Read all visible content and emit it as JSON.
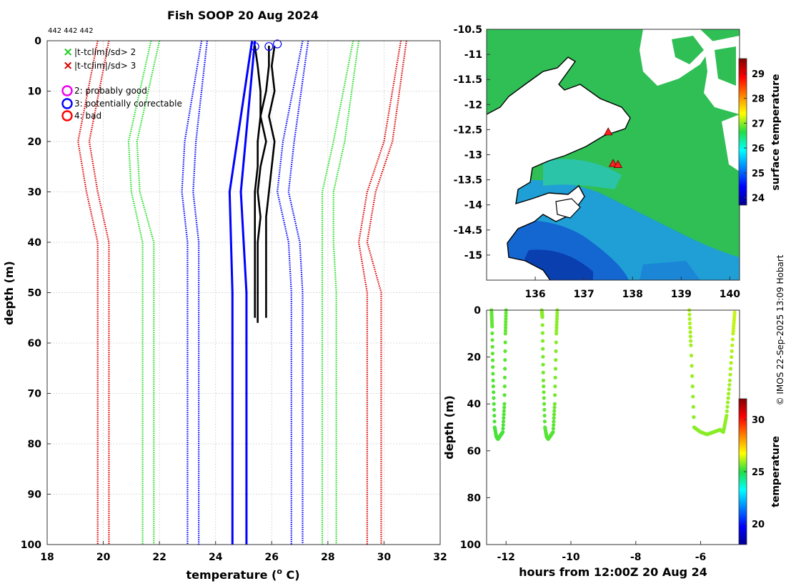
{
  "title": "Fish SOOP 20 Aug 2024",
  "counts_label": "442 442 442",
  "credit": "© IMOS 22-Sep-2025 13:09 Hobart",
  "colors": {
    "blue": "#0000ff",
    "green": "#22dd22",
    "red": "#dd0000",
    "black": "#000000",
    "magenta": "#ee00ee"
  },
  "chart_data": [
    {
      "id": "profile",
      "type": "line",
      "xlabel": "temperature (° C)",
      "ylabel": "depth (m)",
      "xlim": [
        18,
        32
      ],
      "ylim": [
        0,
        100
      ],
      "y_reversed": true,
      "xticks": [
        18,
        20,
        22,
        24,
        26,
        28,
        30,
        32
      ],
      "yticks": [
        0,
        10,
        20,
        30,
        40,
        50,
        60,
        70,
        80,
        90,
        100
      ],
      "grid": true,
      "legend": [
        {
          "symbol": "x",
          "color": "#22cc22",
          "text": "|t-tclim|/sd> 2"
        },
        {
          "symbol": "x",
          "color": "#dd0000",
          "text": "|t-tclim|/sd> 3"
        },
        {
          "symbol": "o",
          "color": "#ee00ee",
          "text": "2: probably good"
        },
        {
          "symbol": "o",
          "color": "#0000ff",
          "text": "3: potentially correctable"
        },
        {
          "symbol": "o",
          "color": "#ff0000",
          "text": "4: bad"
        }
      ],
      "climatology_depths": [
        0,
        20,
        30,
        40,
        50,
        100
      ],
      "climatology_series": [
        {
          "name": "clim -3sd lower",
          "color": "red",
          "values": [
            19.8,
            19.1,
            19.4,
            19.8,
            19.8,
            19.8
          ]
        },
        {
          "name": "clim -3sd upper",
          "color": "red",
          "values": [
            20.2,
            19.5,
            19.8,
            20.2,
            20.2,
            20.2
          ]
        },
        {
          "name": "clim -2sd lower",
          "color": "green",
          "values": [
            21.7,
            20.9,
            21.0,
            21.4,
            21.4,
            21.4
          ]
        },
        {
          "name": "clim -2sd upper",
          "color": "green",
          "values": [
            22.0,
            21.2,
            21.3,
            21.8,
            21.8,
            21.8
          ]
        },
        {
          "name": "clim -1sd lower",
          "color": "blue",
          "values": [
            23.5,
            22.9,
            22.8,
            23.0,
            23.0,
            23.0
          ]
        },
        {
          "name": "clim -1sd upper",
          "color": "blue",
          "values": [
            23.7,
            23.3,
            23.2,
            23.4,
            23.4,
            23.4
          ]
        },
        {
          "name": "clim +1sd lower",
          "color": "blue",
          "values": [
            27.1,
            26.4,
            26.2,
            26.6,
            26.7,
            26.7
          ]
        },
        {
          "name": "clim +1sd upper",
          "color": "blue",
          "values": [
            27.3,
            26.8,
            26.6,
            27.0,
            27.1,
            27.1
          ]
        },
        {
          "name": "clim +2sd lower",
          "color": "green",
          "values": [
            28.9,
            28.2,
            27.8,
            27.8,
            27.8,
            27.8
          ]
        },
        {
          "name": "clim +2sd upper",
          "color": "green",
          "values": [
            29.1,
            28.6,
            28.2,
            28.2,
            28.3,
            28.3
          ]
        },
        {
          "name": "clim +3sd lower",
          "color": "red",
          "values": [
            30.6,
            30.0,
            29.4,
            29.1,
            29.4,
            29.4
          ]
        },
        {
          "name": "clim +3sd upper",
          "color": "red",
          "values": [
            30.8,
            30.3,
            29.7,
            29.4,
            29.9,
            29.9
          ]
        }
      ],
      "mean_profiles": [
        {
          "name": "clim mean lower",
          "color": "blue",
          "depths": [
            0,
            30,
            50,
            100
          ],
          "values": [
            25.3,
            24.5,
            24.6,
            24.6
          ]
        },
        {
          "name": "clim mean upper",
          "color": "blue",
          "depths": [
            0,
            30,
            50,
            100
          ],
          "values": [
            25.4,
            24.9,
            25.1,
            25.1
          ]
        }
      ],
      "profiles": [
        {
          "name": "profile 1",
          "depths": [
            1,
            5,
            10,
            15,
            20,
            25,
            30,
            35,
            40,
            45,
            50,
            55
          ],
          "values": [
            25.4,
            25.5,
            25.6,
            25.6,
            25.5,
            25.5,
            25.4,
            25.4,
            25.4,
            25.4,
            25.4,
            25.4
          ]
        },
        {
          "name": "profile 2",
          "depths": [
            1,
            5,
            10,
            15,
            20,
            25,
            30,
            35,
            40,
            45,
            50,
            56
          ],
          "values": [
            25.9,
            25.9,
            25.8,
            25.6,
            25.8,
            25.6,
            25.5,
            25.6,
            25.5,
            25.5,
            25.5,
            25.5
          ]
        },
        {
          "name": "profile 3",
          "depths": [
            1,
            5,
            10,
            15,
            20,
            25,
            30,
            35,
            40,
            45,
            50,
            55
          ],
          "values": [
            26.1,
            26.0,
            26.1,
            25.9,
            26.1,
            26.0,
            25.9,
            25.8,
            25.8,
            25.8,
            25.8,
            25.8
          ]
        }
      ],
      "surface_markers": [
        {
          "x": 25.4,
          "depth": 1,
          "color": "#0000ff"
        },
        {
          "x": 25.9,
          "depth": 1,
          "color": "#0000ff"
        },
        {
          "x": 26.2,
          "depth": 0.5,
          "color": "#0000ff"
        }
      ]
    },
    {
      "id": "map",
      "type": "heatmap",
      "xlim": [
        135.0,
        140.2
      ],
      "ylim": [
        -15.5,
        -10.5
      ],
      "xticks": [
        136,
        137,
        138,
        139,
        140
      ],
      "yticks": [
        -10.5,
        -11,
        -11.5,
        -12,
        -12.5,
        -13,
        -13.5,
        -14,
        -14.5,
        -15
      ],
      "colorbar_label": "surface temperature",
      "colorbar_range": [
        23.7,
        29.6
      ],
      "colorbar_ticks": [
        24,
        25,
        26,
        27,
        28,
        29
      ],
      "stations": [
        {
          "lon": 137.5,
          "lat": -12.55
        },
        {
          "lon": 137.6,
          "lat": -13.18
        },
        {
          "lon": 137.7,
          "lat": -13.2
        }
      ]
    },
    {
      "id": "timeseries",
      "type": "scatter",
      "xlabel": "hours from 12:00Z 20 Aug 24",
      "ylabel": "depth (m)",
      "xlim": [
        -12.6,
        -4.8
      ],
      "ylim": [
        0,
        100
      ],
      "y_reversed": true,
      "xticks": [
        -12,
        -10,
        -8,
        -6
      ],
      "yticks": [
        0,
        20,
        40,
        60,
        80,
        100
      ],
      "colorbar_label": "temperature",
      "colorbar_range": [
        18,
        32
      ],
      "colorbar_ticks": [
        20,
        25,
        30
      ],
      "casts": [
        {
          "times": [
            -12.45,
            -12.43,
            -12.4,
            -12.35,
            -12.3,
            -12.25,
            -12.2,
            -12.15,
            -12.1,
            -12.05,
            -12.02,
            -12.0
          ],
          "depths": [
            0,
            7,
            30,
            50,
            54,
            55,
            54,
            53,
            52,
            40,
            10,
            0
          ],
          "temps": [
            25.5,
            25.5,
            25.4,
            25.3,
            25.3,
            25.3,
            25.3,
            25.3,
            25.3,
            25.4,
            25.5,
            25.5
          ]
        },
        {
          "times": [
            -10.9,
            -10.88,
            -10.85,
            -10.8,
            -10.75,
            -10.7,
            -10.65,
            -10.6,
            -10.55,
            -10.5,
            -10.45,
            -10.42
          ],
          "depths": [
            0,
            3,
            30,
            50,
            54,
            55,
            54,
            53,
            52,
            40,
            10,
            0
          ],
          "temps": [
            25.8,
            25.8,
            25.6,
            25.4,
            25.4,
            25.4,
            25.4,
            25.4,
            25.4,
            25.6,
            25.8,
            25.8
          ]
        },
        {
          "times": [
            -6.35,
            -6.3,
            -6.2,
            -6.0,
            -5.8,
            -5.6,
            -5.4,
            -5.3,
            -5.2,
            -5.1,
            -5.0,
            -4.95
          ],
          "depths": [
            0,
            15,
            50,
            52,
            53,
            52,
            51,
            52,
            45,
            30,
            10,
            1
          ],
          "temps": [
            26.1,
            26.0,
            25.8,
            25.8,
            25.8,
            25.8,
            25.8,
            25.8,
            25.9,
            26.0,
            26.2,
            26.3
          ]
        }
      ]
    }
  ]
}
